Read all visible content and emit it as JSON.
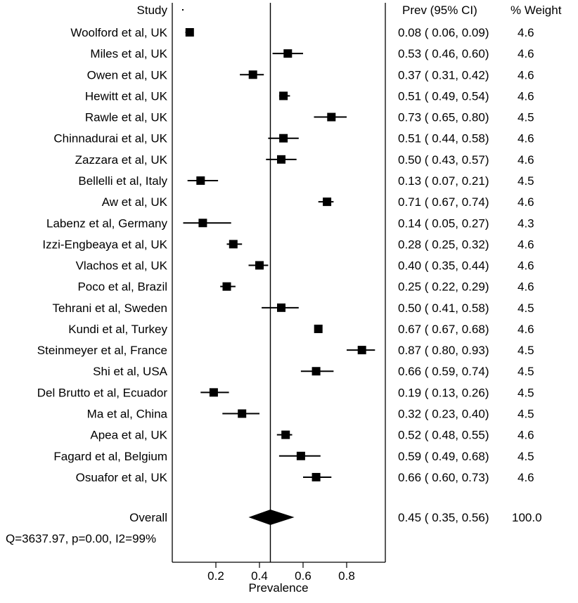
{
  "chart_data": {
    "type": "forest",
    "headers": {
      "study": "Study",
      "estimate": "Prev (95% CI)",
      "weight": "% Weight"
    },
    "xlabel": "Prevalence",
    "xlim": [
      0.0,
      1.0
    ],
    "xticks": [
      "0.2",
      "0.4",
      "0.6",
      "0.8"
    ],
    "reference_line": 0.45,
    "studies": [
      {
        "label": "Woolford et al, UK",
        "est": 0.08,
        "lo": 0.06,
        "hi": 0.09,
        "ci_text": "0.08  (  0.06,  0.09)",
        "weight": "4.6"
      },
      {
        "label": "Miles et al, UK",
        "est": 0.53,
        "lo": 0.46,
        "hi": 0.6,
        "ci_text": "0.53  (  0.46,  0.60)",
        "weight": "4.6"
      },
      {
        "label": "Owen et al, UK",
        "est": 0.37,
        "lo": 0.31,
        "hi": 0.42,
        "ci_text": "0.37  (  0.31,  0.42)",
        "weight": "4.6"
      },
      {
        "label": "Hewitt et al, UK",
        "est": 0.51,
        "lo": 0.49,
        "hi": 0.54,
        "ci_text": "0.51  (  0.49,  0.54)",
        "weight": "4.6"
      },
      {
        "label": "Rawle et al, UK",
        "est": 0.73,
        "lo": 0.65,
        "hi": 0.8,
        "ci_text": "0.73  (  0.65,  0.80)",
        "weight": "4.5"
      },
      {
        "label": "Chinnadurai et al, UK",
        "est": 0.51,
        "lo": 0.44,
        "hi": 0.58,
        "ci_text": "0.51  (  0.44,  0.58)",
        "weight": "4.6"
      },
      {
        "label": "Zazzara et al, UK",
        "est": 0.5,
        "lo": 0.43,
        "hi": 0.57,
        "ci_text": "0.50  (  0.43,  0.57)",
        "weight": "4.6"
      },
      {
        "label": "Bellelli et al, Italy",
        "est": 0.13,
        "lo": 0.07,
        "hi": 0.21,
        "ci_text": "0.13  (  0.07,  0.21)",
        "weight": "4.5"
      },
      {
        "label": "Aw et al, UK",
        "est": 0.71,
        "lo": 0.67,
        "hi": 0.74,
        "ci_text": "0.71  (  0.67,  0.74)",
        "weight": "4.6"
      },
      {
        "label": "Labenz et al, Germany",
        "est": 0.14,
        "lo": 0.05,
        "hi": 0.27,
        "ci_text": "0.14  (  0.05,  0.27)",
        "weight": "4.3"
      },
      {
        "label": "Izzi-Engbeaya et al, UK",
        "est": 0.28,
        "lo": 0.25,
        "hi": 0.32,
        "ci_text": "0.28  (  0.25,  0.32)",
        "weight": "4.6"
      },
      {
        "label": "Vlachos et al, UK",
        "est": 0.4,
        "lo": 0.35,
        "hi": 0.44,
        "ci_text": "0.40  (  0.35,  0.44)",
        "weight": "4.6"
      },
      {
        "label": "Poco et al, Brazil",
        "est": 0.25,
        "lo": 0.22,
        "hi": 0.29,
        "ci_text": "0.25  (  0.22,  0.29)",
        "weight": "4.6"
      },
      {
        "label": "Tehrani et al, Sweden",
        "est": 0.5,
        "lo": 0.41,
        "hi": 0.58,
        "ci_text": "0.50  (  0.41,  0.58)",
        "weight": "4.5"
      },
      {
        "label": "Kundi et al, Turkey",
        "est": 0.67,
        "lo": 0.67,
        "hi": 0.68,
        "ci_text": "0.67  (  0.67,  0.68)",
        "weight": "4.6"
      },
      {
        "label": "Steinmeyer et al, France",
        "est": 0.87,
        "lo": 0.8,
        "hi": 0.93,
        "ci_text": "0.87  (  0.80,  0.93)",
        "weight": "4.5"
      },
      {
        "label": "Shi et al, USA",
        "est": 0.66,
        "lo": 0.59,
        "hi": 0.74,
        "ci_text": "0.66  (  0.59,  0.74)",
        "weight": "4.5"
      },
      {
        "label": "Del Brutto et al, Ecuador",
        "est": 0.19,
        "lo": 0.13,
        "hi": 0.26,
        "ci_text": "0.19  (  0.13,  0.26)",
        "weight": "4.5"
      },
      {
        "label": "Ma et al, China",
        "est": 0.32,
        "lo": 0.23,
        "hi": 0.4,
        "ci_text": "0.32  (  0.23,  0.40)",
        "weight": "4.5"
      },
      {
        "label": "Apea et al, UK",
        "est": 0.52,
        "lo": 0.48,
        "hi": 0.55,
        "ci_text": "0.52  (  0.48,  0.55)",
        "weight": "4.6"
      },
      {
        "label": "Fagard et al, Belgium",
        "est": 0.59,
        "lo": 0.49,
        "hi": 0.68,
        "ci_text": "0.59  (  0.49,  0.68)",
        "weight": "4.5"
      },
      {
        "label": "Osuafor et al, UK",
        "est": 0.66,
        "lo": 0.6,
        "hi": 0.73,
        "ci_text": "0.66  (  0.60,  0.73)",
        "weight": "4.6"
      }
    ],
    "overall": {
      "label": "Overall",
      "est": 0.45,
      "lo": 0.35,
      "hi": 0.56,
      "ci_text": "0.45  (  0.35,  0.56)",
      "weight": "100.0"
    },
    "heterogeneity": "Q=3637.97, p=0.00, I2=99%"
  }
}
